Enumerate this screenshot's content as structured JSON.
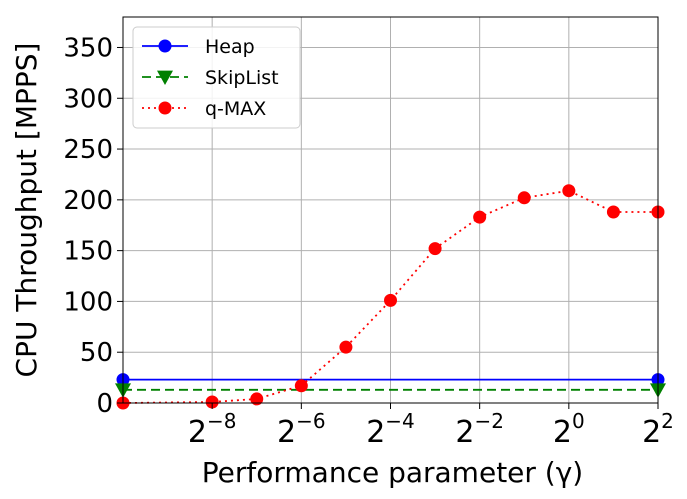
{
  "chart_data": {
    "type": "line",
    "title": "",
    "xlabel": "Performance parameter (γ)",
    "ylabel": "CPU Throughput [MPPS]",
    "x_scale": "log2",
    "xlim_exp": [
      -10,
      2
    ],
    "ylim": [
      0,
      380
    ],
    "grid": true,
    "legend_position": "top-left",
    "x_ticks": [
      {
        "base": "2",
        "exp": "−8",
        "value_exp": -8
      },
      {
        "base": "2",
        "exp": "−6",
        "value_exp": -6
      },
      {
        "base": "2",
        "exp": "−4",
        "value_exp": -4
      },
      {
        "base": "2",
        "exp": "−2",
        "value_exp": -2
      },
      {
        "base": "2",
        "exp": "0",
        "value_exp": 0
      },
      {
        "base": "2",
        "exp": "2",
        "value_exp": 2
      }
    ],
    "y_ticks": [
      0,
      50,
      100,
      150,
      200,
      250,
      300,
      350
    ],
    "series": [
      {
        "name": "Heap",
        "color": "#0000ff",
        "line": "solid",
        "marker": "circle",
        "x_exp": [
          -10,
          2
        ],
        "marker_x_exp": [
          -10,
          2
        ],
        "values": [
          23,
          23
        ]
      },
      {
        "name": "SkipList",
        "color": "#008000",
        "line": "dashed",
        "marker": "triangle-down",
        "x_exp": [
          -10,
          2
        ],
        "marker_x_exp": [
          -10,
          2
        ],
        "values": [
          13,
          13
        ]
      },
      {
        "name": "q-MAX",
        "color": "#ff0000",
        "line": "dotted",
        "marker": "circle",
        "x_exp": [
          -10,
          -8,
          -7,
          -6,
          -5,
          -4,
          -3,
          -2,
          -1,
          0,
          1,
          2
        ],
        "marker_x_exp": [
          -10,
          -8,
          -7,
          -6,
          -5,
          -4,
          -3,
          -2,
          -1,
          0,
          1,
          2
        ],
        "values": [
          0,
          1,
          4,
          17,
          55,
          101,
          152,
          183,
          202,
          209,
          188,
          188
        ]
      }
    ]
  }
}
